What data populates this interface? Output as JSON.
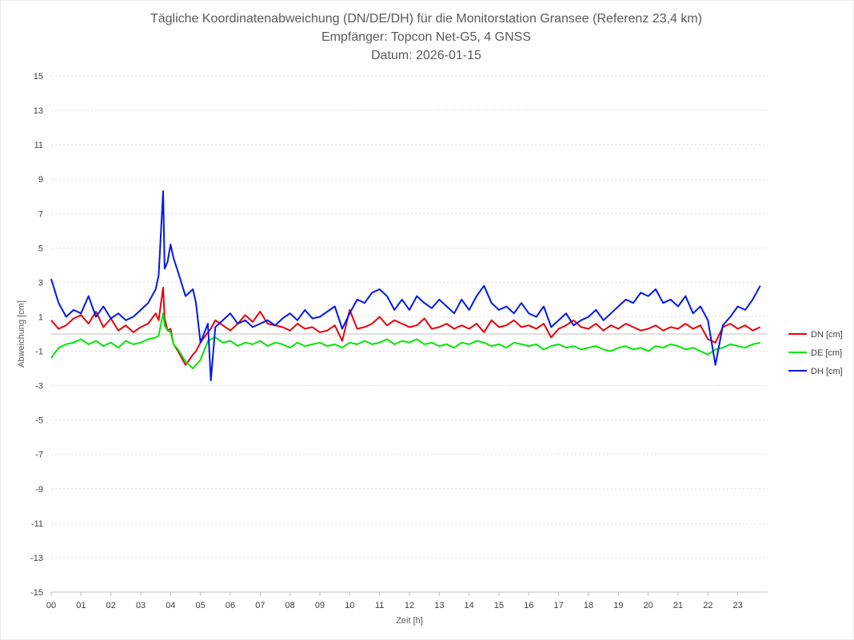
{
  "chart_data": {
    "type": "line",
    "title": [
      "Tägliche Koordinatenabweichung (DN/DE/DH) für die Monitorstation Gransee (Referenz 23,4 km)",
      "Empfänger: Topcon Net-G5, 4 GNSS",
      "Datum: 2026-01-15"
    ],
    "xlabel": "Zeit [h]",
    "ylabel": "Abweichung [cm]",
    "xlim": [
      0,
      24
    ],
    "ylim": [
      -15,
      15
    ],
    "x_ticks": [
      {
        "value": 0,
        "label": "00"
      },
      {
        "value": 1,
        "label": "01"
      },
      {
        "value": 2,
        "label": "02"
      },
      {
        "value": 3,
        "label": "03"
      },
      {
        "value": 4,
        "label": "04"
      },
      {
        "value": 5,
        "label": "05"
      },
      {
        "value": 6,
        "label": "06"
      },
      {
        "value": 7,
        "label": "07"
      },
      {
        "value": 8,
        "label": "08"
      },
      {
        "value": 9,
        "label": "09"
      },
      {
        "value": 10,
        "label": "10"
      },
      {
        "value": 11,
        "label": "11"
      },
      {
        "value": 12,
        "label": "12"
      },
      {
        "value": 13,
        "label": "13"
      },
      {
        "value": 14,
        "label": "14"
      },
      {
        "value": 15,
        "label": "15"
      },
      {
        "value": 16,
        "label": "16"
      },
      {
        "value": 17,
        "label": "17"
      },
      {
        "value": 18,
        "label": "18"
      },
      {
        "value": 19,
        "label": "19"
      },
      {
        "value": 20,
        "label": "20"
      },
      {
        "value": 21,
        "label": "21"
      },
      {
        "value": 22,
        "label": "22"
      },
      {
        "value": 23,
        "label": "23"
      }
    ],
    "y_ticks": [
      15,
      13,
      11,
      9,
      7,
      5,
      3,
      1,
      -1,
      -3,
      -5,
      -7,
      -9,
      -11,
      -13,
      -15
    ],
    "grid": true,
    "legend_position": "right",
    "x": [
      0,
      0.25,
      0.5,
      0.75,
      1,
      1.25,
      1.5,
      1.75,
      2,
      2.25,
      2.5,
      2.75,
      3,
      3.25,
      3.5,
      3.6,
      3.75,
      3.8,
      3.9,
      4,
      4.1,
      4.25,
      4.5,
      4.75,
      4.85,
      5,
      5.25,
      5.35,
      5.5,
      5.75,
      6,
      6.25,
      6.5,
      6.75,
      7,
      7.25,
      7.5,
      7.75,
      8,
      8.25,
      8.5,
      8.75,
      9,
      9.25,
      9.5,
      9.75,
      10,
      10.25,
      10.5,
      10.75,
      11,
      11.25,
      11.5,
      11.75,
      12,
      12.25,
      12.5,
      12.75,
      13,
      13.25,
      13.5,
      13.75,
      14,
      14.25,
      14.5,
      14.75,
      15,
      15.25,
      15.5,
      15.75,
      16,
      16.25,
      16.5,
      16.75,
      17,
      17.25,
      17.5,
      17.75,
      18,
      18.25,
      18.5,
      18.75,
      19,
      19.25,
      19.5,
      19.75,
      20,
      20.25,
      20.5,
      20.75,
      21,
      21.25,
      21.5,
      21.75,
      22,
      22.25,
      22.5,
      22.75,
      23,
      23.25,
      23.5,
      23.75
    ],
    "series": [
      {
        "name": "DN [cm]",
        "color": "#e8000b",
        "values": [
          0.8,
          0.3,
          0.5,
          0.9,
          1.1,
          0.6,
          1.3,
          0.4,
          0.9,
          0.2,
          0.5,
          0.1,
          0.4,
          0.6,
          1.2,
          0.8,
          2.7,
          0.9,
          0.2,
          0.3,
          -0.6,
          -1.0,
          -1.8,
          -1.2,
          -1.0,
          -0.5,
          0.1,
          0.3,
          0.8,
          0.5,
          0.2,
          0.6,
          1.1,
          0.7,
          1.3,
          0.6,
          0.5,
          0.4,
          0.2,
          0.6,
          0.3,
          0.4,
          0.1,
          0.2,
          0.5,
          -0.4,
          1.4,
          0.3,
          0.4,
          0.6,
          1.0,
          0.5,
          0.8,
          0.6,
          0.4,
          0.5,
          0.9,
          0.3,
          0.4,
          0.6,
          0.3,
          0.5,
          0.3,
          0.6,
          0.1,
          0.8,
          0.4,
          0.5,
          0.8,
          0.4,
          0.5,
          0.3,
          0.6,
          -0.2,
          0.3,
          0.5,
          0.8,
          0.4,
          0.3,
          0.6,
          0.2,
          0.5,
          0.3,
          0.6,
          0.4,
          0.2,
          0.3,
          0.5,
          0.2,
          0.4,
          0.3,
          0.6,
          0.3,
          0.5,
          -0.3,
          -0.5,
          0.4,
          0.6,
          0.3,
          0.5,
          0.2,
          0.4
        ]
      },
      {
        "name": "DE [cm]",
        "color": "#00e800",
        "values": [
          -1.4,
          -0.8,
          -0.6,
          -0.5,
          -0.3,
          -0.6,
          -0.4,
          -0.7,
          -0.5,
          -0.8,
          -0.4,
          -0.6,
          -0.5,
          -0.3,
          -0.2,
          -0.1,
          1.2,
          0.5,
          0.2,
          0.1,
          -0.6,
          -0.9,
          -1.6,
          -2.0,
          -1.8,
          -1.5,
          -0.4,
          -0.3,
          -0.2,
          -0.5,
          -0.4,
          -0.7,
          -0.5,
          -0.6,
          -0.4,
          -0.7,
          -0.5,
          -0.6,
          -0.8,
          -0.5,
          -0.7,
          -0.6,
          -0.5,
          -0.7,
          -0.6,
          -0.8,
          -0.5,
          -0.6,
          -0.4,
          -0.6,
          -0.5,
          -0.3,
          -0.6,
          -0.4,
          -0.5,
          -0.3,
          -0.6,
          -0.5,
          -0.7,
          -0.6,
          -0.8,
          -0.5,
          -0.6,
          -0.4,
          -0.5,
          -0.7,
          -0.6,
          -0.8,
          -0.5,
          -0.6,
          -0.7,
          -0.6,
          -0.9,
          -0.7,
          -0.6,
          -0.8,
          -0.7,
          -0.9,
          -0.8,
          -0.7,
          -0.9,
          -1.0,
          -0.8,
          -0.7,
          -0.9,
          -0.8,
          -1.0,
          -0.7,
          -0.8,
          -0.6,
          -0.7,
          -0.9,
          -0.8,
          -1.0,
          -1.2,
          -0.9,
          -0.8,
          -0.6,
          -0.7,
          -0.8,
          -0.6,
          -0.5
        ]
      },
      {
        "name": "DH [cm]",
        "color": "#0018e8",
        "values": [
          3.2,
          1.8,
          1.0,
          1.4,
          1.2,
          2.2,
          1.0,
          1.6,
          0.9,
          1.2,
          0.8,
          1.0,
          1.4,
          1.8,
          2.6,
          3.4,
          8.3,
          3.8,
          4.2,
          5.2,
          4.4,
          3.6,
          2.2,
          2.6,
          1.8,
          -0.5,
          0.6,
          -2.7,
          0.4,
          0.8,
          1.2,
          0.6,
          0.8,
          0.4,
          0.6,
          0.8,
          0.5,
          0.9,
          1.2,
          0.8,
          1.4,
          0.9,
          1.0,
          1.3,
          1.6,
          0.3,
          1.2,
          2.0,
          1.8,
          2.4,
          2.6,
          2.2,
          1.4,
          2.0,
          1.4,
          2.2,
          1.8,
          1.5,
          2.0,
          1.6,
          1.2,
          2.0,
          1.4,
          2.2,
          2.8,
          1.8,
          1.4,
          1.6,
          1.2,
          1.8,
          1.2,
          1.0,
          1.6,
          0.4,
          0.8,
          1.2,
          0.5,
          0.8,
          1.0,
          1.4,
          0.8,
          1.2,
          1.6,
          2.0,
          1.8,
          2.4,
          2.2,
          2.6,
          1.8,
          2.0,
          1.6,
          2.2,
          1.2,
          1.6,
          0.8,
          -1.8,
          0.5,
          1.0,
          1.6,
          1.4,
          2.0,
          2.8
        ]
      }
    ]
  }
}
